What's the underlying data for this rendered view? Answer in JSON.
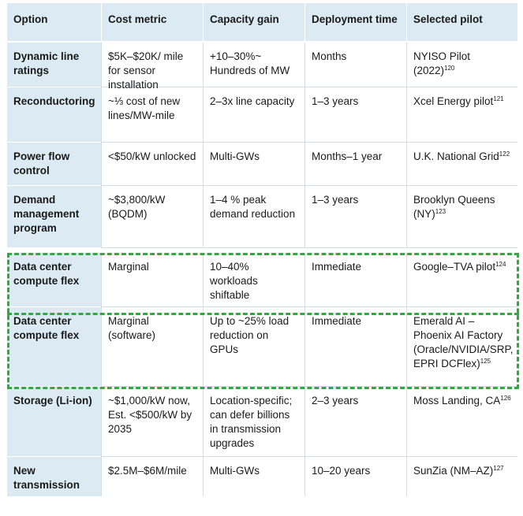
{
  "headers": {
    "option": "Option",
    "cost": "Cost metric",
    "capacity": "Capacity gain",
    "deployment": "Deployment time",
    "pilot": "Selected pilot"
  },
  "rows": [
    {
      "option": "Dynamic line ratings",
      "cost": "$5K–$20K/ mile for sensor installation",
      "capacity": "+10–30%~ Hundreds of MW",
      "deployment": "Months",
      "pilot": "NYISO Pilot (2022)",
      "ref": "120"
    },
    {
      "option": "Reconductoring",
      "cost": "~⅓ cost of new lines/MW-mile",
      "capacity": "2–3x line capacity",
      "deployment": "1–3 years",
      "pilot": "Xcel Energy pilot",
      "ref": "121"
    },
    {
      "option": "Power flow control",
      "cost": "<$50/kW unlocked",
      "capacity": "Multi-GWs",
      "deployment": "Months–1 year",
      "pilot": "U.K. National Grid",
      "ref": "122"
    },
    {
      "option": "Demand management program",
      "cost": "~$3,800/kW (BQDM)",
      "capacity": "1–4 % peak demand reduction",
      "deployment": "1–3 years",
      "pilot": "Brooklyn Queens (NY)",
      "ref": "123"
    },
    {
      "option": "Data center compute flex",
      "cost": "Marginal",
      "capacity": "10–40% workloads shiftable",
      "deployment": "Immediate",
      "pilot": "Google–TVA pilot",
      "ref": "124"
    },
    {
      "option": "Data center compute flex",
      "cost": "Marginal (software)",
      "capacity": "Up to ~25% load reduction on GPUs",
      "deployment": "Immediate",
      "pilot": "Emerald AI – Phoenix AI Factory (Oracle/NVIDIA/SRP, EPRI DCFlex)",
      "ref": "125"
    },
    {
      "option": "Storage (Li-ion)",
      "cost": "~$1,000/kW now, Est. <$500/kW by 2035",
      "capacity": "Location-specific; can defer billions in transmission upgrades",
      "deployment": "2–3 years",
      "pilot": "Moss Landing, CA",
      "ref": "126"
    },
    {
      "option": "New transmission",
      "cost": "$2.5M–$6M/mile",
      "capacity": "Multi-GWs",
      "deployment": "10–20 years",
      "pilot": "SunZia (NM–AZ)",
      "ref": "127"
    }
  ],
  "colors": {
    "header_bg": "#dcebf3",
    "highlight_dash": "#2eaa3e"
  }
}
